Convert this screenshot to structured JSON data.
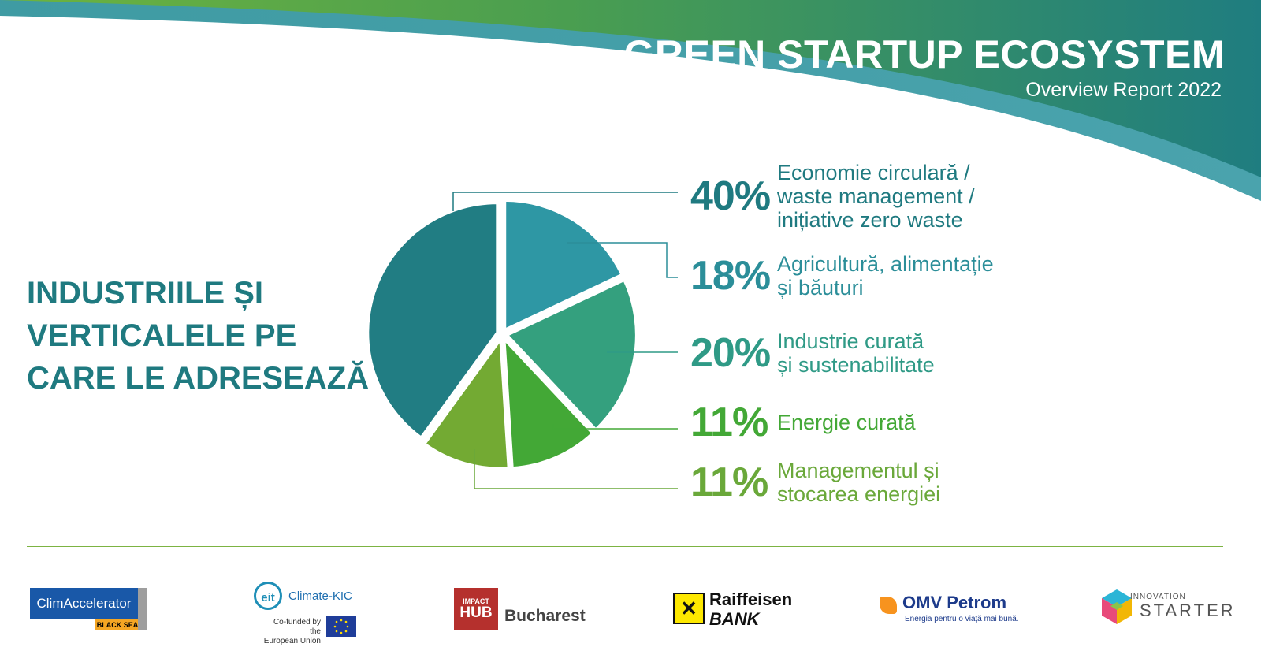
{
  "header": {
    "title": "GREEN STARTUP ECOSYSTEM",
    "subtitle": "Overview Report 2022"
  },
  "heading": {
    "line1": "INDUSTRIILE ȘI",
    "line2": "VERTICALELE PE",
    "line3": "CARE LE ADRESEAZĂ"
  },
  "colors": {
    "header_green": "#57a84a",
    "header_teal": "#1f7d80",
    "heading": "#1f7a80"
  },
  "chart_data": {
    "type": "pie",
    "categories": [
      "Economie circulară / waste management / inițiative zero waste",
      "Agricultură, alimentație și băuturi",
      "Industrie curată și sustenabilitate",
      "Energie curată",
      "Managementul și stocarea energiei"
    ],
    "values": [
      40,
      18,
      20,
      11,
      11
    ],
    "value_labels": [
      "40%",
      "18%",
      "20%",
      "11%",
      "11%"
    ],
    "colors": [
      "#217d83",
      "#2e97a4",
      "#34a07e",
      "#43a836",
      "#73aa33"
    ],
    "legend_lines": [
      [
        "Economie circulară /",
        "waste management /",
        "inițiative zero waste"
      ],
      [
        "Agricultură, alimentație",
        "și băuturi"
      ],
      [
        "Industrie curată",
        "și sustenabilitate"
      ],
      [
        "Energie curată"
      ],
      [
        "Managementul și",
        "stocarea energiei"
      ]
    ],
    "legend_colors": [
      "#1f7a80",
      "#2b8e99",
      "#2f9a86",
      "#43a836",
      "#6aa83a"
    ],
    "legend_placement": "right"
  },
  "logos": {
    "climaccelerator": {
      "name": "ClimAccelerator",
      "tag": "BLACK SEA"
    },
    "eit": {
      "mark": "eit",
      "name": "Climate-KIC",
      "cofunded_1": "Co-funded by the",
      "cofunded_2": "European Union"
    },
    "impact_hub": {
      "small": "IMPACT",
      "big": "HUB",
      "city": "Bucharest"
    },
    "raiffeisen": {
      "name": "Raiffeisen",
      "bank": "BANK",
      "symbol": "✕"
    },
    "omv": {
      "name": "OMV Petrom",
      "tagline": "Energia pentru o viață mai bună."
    },
    "innovation_starter": {
      "small": "INNOVATION",
      "big": "STARTER"
    }
  }
}
